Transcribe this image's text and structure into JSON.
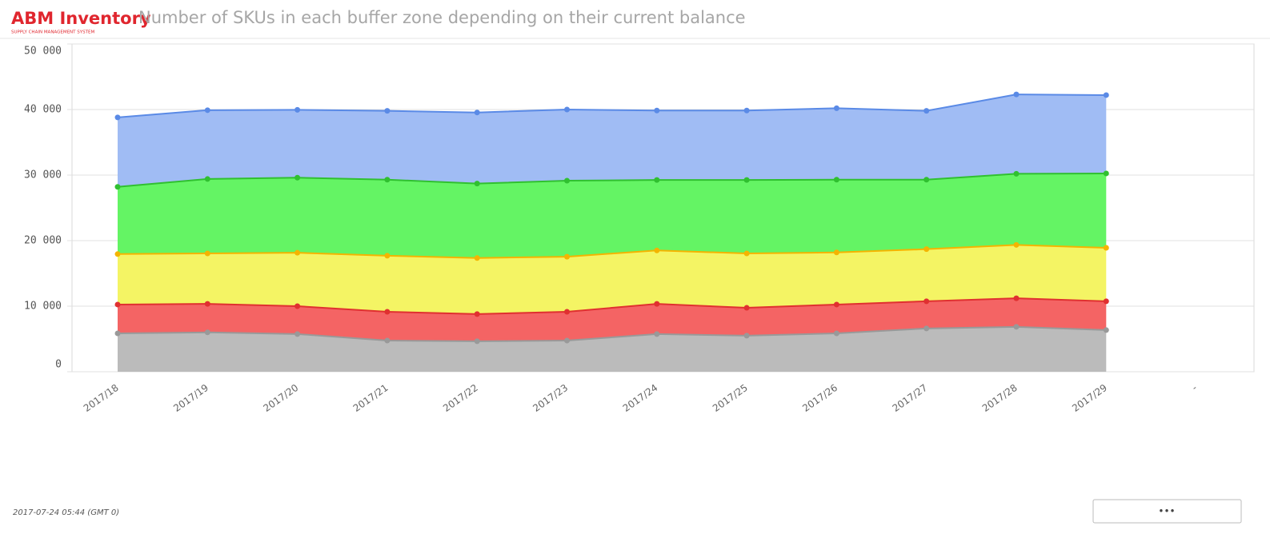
{
  "header": {
    "logo": "ABM Inventory",
    "logo_subtitle": "SUPPLY CHAIN MANAGEMENT SYSTEM"
  },
  "chart_data": {
    "type": "stacked_area",
    "title": "Number of SKUs in each buffer zone depending on their current balance",
    "categories": [
      "2017/18",
      "2017/19",
      "2017/20",
      "2017/21",
      "2017/22",
      "2017/23",
      "2017/24",
      "2017/25",
      "2017/26",
      "2017/27",
      "2017/28",
      "2017/29",
      "-"
    ],
    "series": [
      {
        "color": "#bbbbbb",
        "line": "#999999",
        "values": [
          5850,
          6000,
          5750,
          4750,
          4650,
          4750,
          5750,
          5500,
          5850,
          6600,
          6850,
          6350,
          null
        ]
      },
      {
        "color": "#f46464",
        "line": "#e03030",
        "values": [
          4400,
          4350,
          4250,
          4400,
          4150,
          4400,
          4600,
          4250,
          4400,
          4150,
          4350,
          4400,
          null
        ]
      },
      {
        "color": "#f4f464",
        "line": "#f4b400",
        "values": [
          7700,
          7700,
          8150,
          8550,
          8550,
          8400,
          8150,
          8300,
          7950,
          7950,
          8150,
          8150,
          null
        ]
      },
      {
        "color": "#64f464",
        "line": "#30c030",
        "values": [
          10250,
          11350,
          11450,
          11600,
          11350,
          11600,
          10750,
          11200,
          11100,
          10600,
          10850,
          11350,
          null
        ]
      },
      {
        "color": "#a0bcf4",
        "line": "#5a8ae6",
        "values": [
          10600,
          10500,
          10350,
          10500,
          10850,
          10850,
          10600,
          10600,
          10900,
          10500,
          12100,
          11950,
          null
        ]
      }
    ],
    "ylim": [
      0,
      50000
    ],
    "yticks": [
      0,
      {
        "value": 10000,
        "label": "10 000"
      },
      {
        "value": 20000,
        "label": "20 000"
      },
      {
        "value": 30000,
        "label": "30 000"
      },
      {
        "value": 40000,
        "label": "40 000"
      },
      {
        "value": 50000,
        "label": "50 000"
      }
    ],
    "grid": true
  },
  "footer": {
    "timestamp": "2017-07-24 05:44 (GMT 0)",
    "menu_button": "•••"
  }
}
